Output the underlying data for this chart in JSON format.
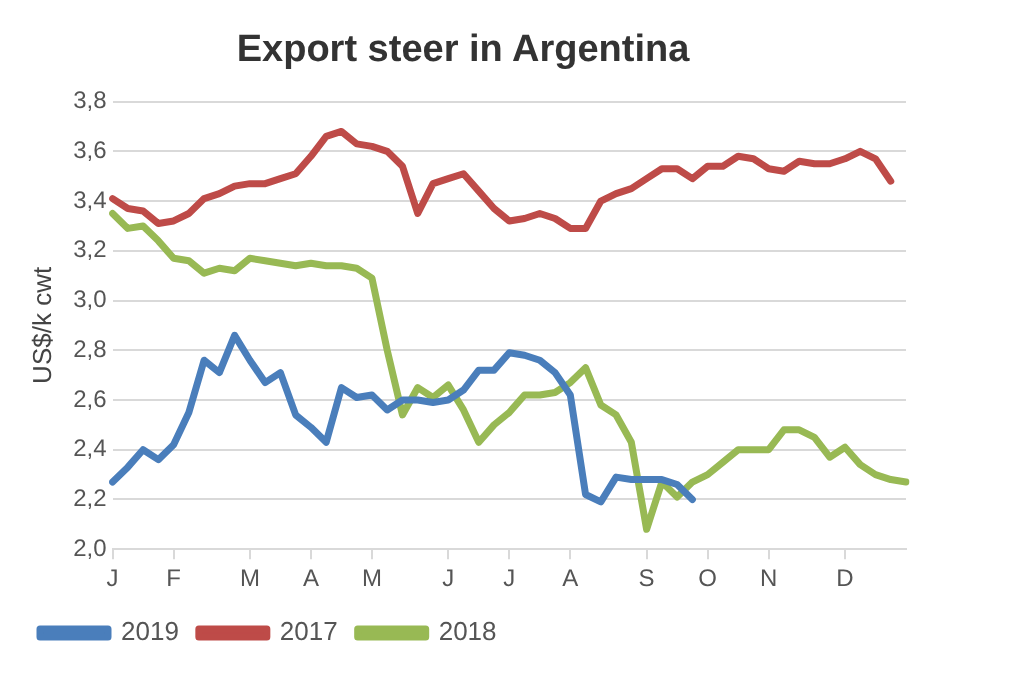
{
  "chart_data": {
    "type": "line",
    "title": "Export steer in Argentina",
    "ylabel": "US$/k cwt",
    "categories": [
      "J",
      null,
      null,
      null,
      "F",
      null,
      null,
      null,
      null,
      "M",
      null,
      null,
      null,
      "A",
      null,
      null,
      null,
      "M",
      null,
      null,
      null,
      null,
      "J",
      null,
      null,
      null,
      "J",
      null,
      null,
      null,
      "A",
      null,
      null,
      null,
      null,
      "S",
      null,
      null,
      null,
      "O",
      null,
      null,
      null,
      "N",
      null,
      null,
      null,
      null,
      "D",
      null,
      null,
      null,
      null
    ],
    "ylim": [
      2.0,
      3.8
    ],
    "yticks": [
      {
        "value": 2.0,
        "label": "2,0"
      },
      {
        "value": 2.2,
        "label": "2,2"
      },
      {
        "value": 2.4,
        "label": "2,4"
      },
      {
        "value": 2.6,
        "label": "2,6"
      },
      {
        "value": 2.8,
        "label": "2,8"
      },
      {
        "value": 3.0,
        "label": "3,0"
      },
      {
        "value": 3.2,
        "label": "3,2"
      },
      {
        "value": 3.4,
        "label": "3,4"
      },
      {
        "value": 3.6,
        "label": "3,6"
      },
      {
        "value": 3.8,
        "label": "3,8"
      }
    ],
    "grid": "y",
    "legend": "bottom left",
    "marker": "none",
    "line_style": "solid",
    "series": [
      {
        "name": "2019",
        "color": "#4a7ebb",
        "values": [
          2.27,
          2.33,
          2.4,
          2.36,
          2.42,
          2.55,
          2.76,
          2.71,
          2.86,
          2.76,
          2.67,
          2.71,
          2.54,
          2.49,
          2.43,
          2.65,
          2.61,
          2.62,
          2.56,
          2.6,
          2.6,
          2.59,
          2.6,
          2.64,
          2.72,
          2.72,
          2.79,
          2.78,
          2.76,
          2.71,
          2.62,
          2.22,
          2.19,
          2.29,
          2.28,
          2.28,
          2.28,
          2.26,
          2.2,
          null,
          null,
          null,
          null,
          null,
          null,
          null,
          null,
          null,
          null,
          null,
          null,
          null,
          null
        ]
      },
      {
        "name": "2017",
        "color": "#be4b48",
        "values": [
          3.41,
          3.37,
          3.36,
          3.31,
          3.32,
          3.35,
          3.41,
          3.43,
          3.46,
          3.47,
          3.47,
          3.49,
          3.51,
          3.58,
          3.66,
          3.68,
          3.63,
          3.62,
          3.6,
          3.54,
          3.35,
          3.47,
          3.49,
          3.51,
          3.44,
          3.37,
          3.32,
          3.33,
          3.35,
          3.33,
          3.29,
          3.29,
          3.4,
          3.43,
          3.45,
          3.49,
          3.53,
          3.53,
          3.49,
          3.54,
          3.54,
          3.58,
          3.57,
          3.53,
          3.52,
          3.56,
          3.55,
          3.55,
          3.57,
          3.6,
          3.57,
          3.48,
          null
        ]
      },
      {
        "name": "2018",
        "color": "#98b954",
        "values": [
          3.35,
          3.29,
          3.3,
          3.24,
          3.17,
          3.16,
          3.11,
          3.13,
          3.12,
          3.17,
          3.16,
          3.15,
          3.14,
          3.15,
          3.14,
          3.14,
          3.13,
          3.09,
          2.8,
          2.54,
          2.65,
          2.61,
          2.66,
          2.56,
          2.43,
          2.5,
          2.55,
          2.62,
          2.62,
          2.63,
          2.67,
          2.73,
          2.58,
          2.54,
          2.43,
          2.08,
          2.27,
          2.21,
          2.27,
          2.3,
          2.35,
          2.4,
          2.4,
          2.4,
          2.48,
          2.48,
          2.45,
          2.37,
          2.41,
          2.34,
          2.3,
          2.28,
          2.27
        ]
      }
    ]
  }
}
